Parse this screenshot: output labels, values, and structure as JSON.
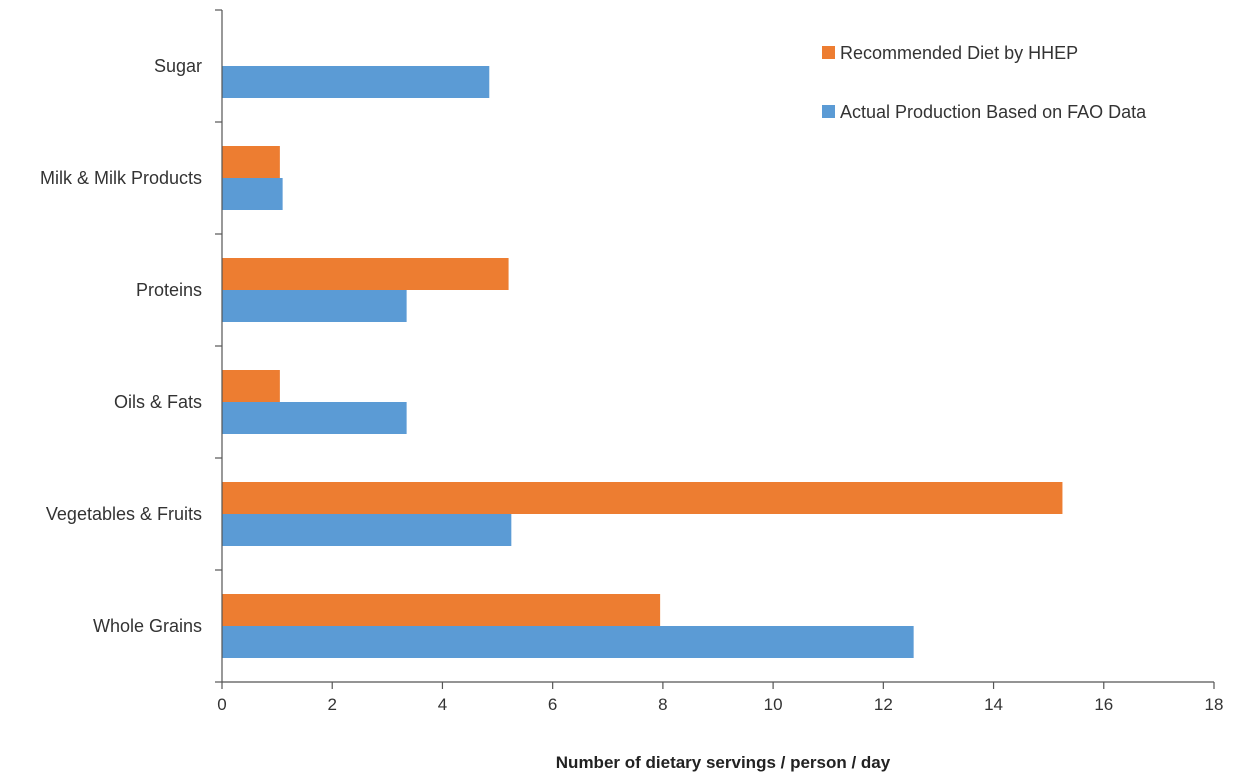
{
  "chart_data": {
    "type": "bar",
    "orientation": "horizontal",
    "categories": [
      "Whole Grains",
      "Vegetables & Fruits",
      "Oils & Fats",
      "Proteins",
      "Milk & Milk Products",
      "Sugar"
    ],
    "series": [
      {
        "name": "Recommended Diet by HHEP",
        "values": [
          7.95,
          15.25,
          1.05,
          5.2,
          1.05,
          0
        ],
        "color": "#ED7D31"
      },
      {
        "name": "Actual Production Based on FAO Data",
        "values": [
          12.55,
          5.25,
          3.35,
          3.35,
          1.1,
          4.85
        ],
        "color": "#5B9BD5"
      }
    ],
    "xlabel": "Number of dietary servings / person / day",
    "ylabel": "",
    "xlim": [
      0,
      18
    ],
    "xticks": [
      "0",
      "2",
      "4",
      "6",
      "8",
      "10",
      "12",
      "14",
      "16",
      "18"
    ],
    "grid": false,
    "legend_position": "top-right"
  }
}
